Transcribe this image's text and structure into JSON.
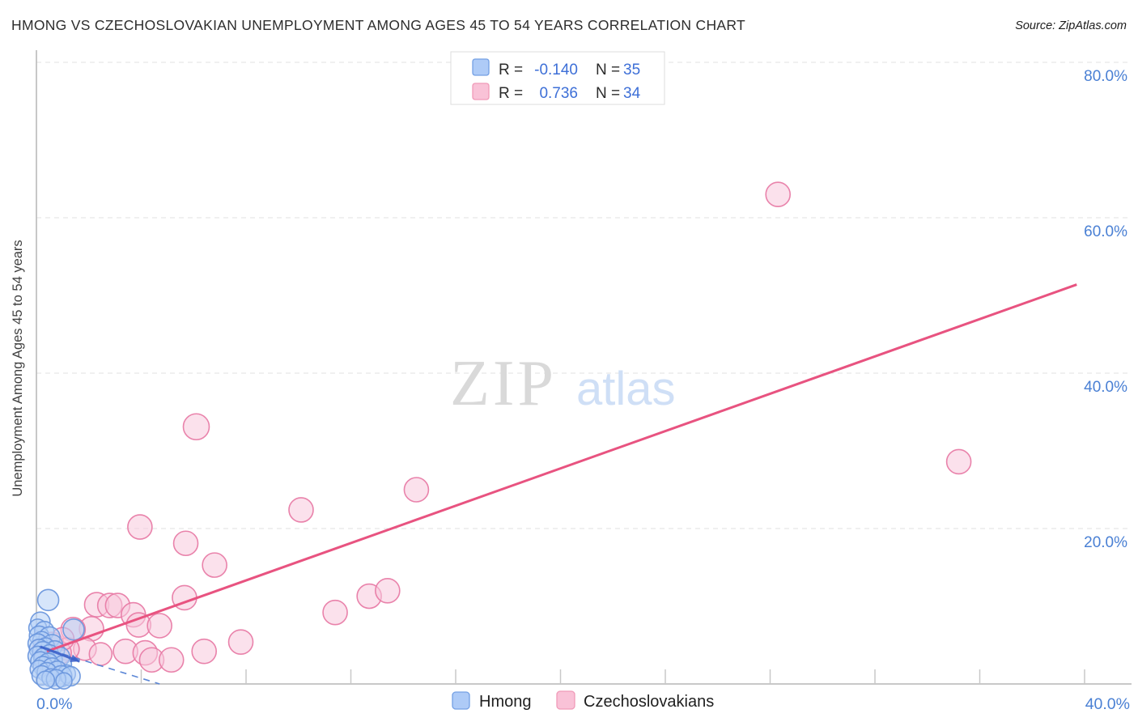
{
  "header": {
    "title": "HMONG VS CZECHOSLOVAKIAN UNEMPLOYMENT AMONG AGES 45 TO 54 YEARS CORRELATION CHART",
    "source": "Source: ZipAtlas.com"
  },
  "watermark": {
    "part1": "ZIP",
    "part2": "atlas"
  },
  "palette": {
    "blue_fill": "#b5d0f6",
    "blue_stroke": "#6b97dd",
    "pink_fill": "#f8c9dc",
    "pink_stroke": "#e87ca6",
    "blue_swatch_fill": "#aecbf7",
    "blue_swatch_stroke": "#74a0e4",
    "pink_swatch_fill": "#f9c2d7",
    "pink_swatch_stroke": "#f09ab8",
    "pink_line": "#e85380",
    "blue_line_solid": "#3a5fc9",
    "blue_line_dash": "#5b86d6",
    "axis_text": "#4a80d4",
    "value_text": "#3d6fd7",
    "label_text": "#2b2b2b",
    "grid": "#e2e2e2",
    "axis_line": "#b5b5b5",
    "tick": "#c8c8c8",
    "wm_zip": "#d9d9d9",
    "wm_atlas": "#cfdff6"
  },
  "correlation_legend": {
    "rows": [
      {
        "series": "Hmong",
        "r_label": "R =",
        "r_value": "-0.140",
        "n_label": "N =",
        "n_value": "35",
        "swatch": "blue"
      },
      {
        "series": "Czechoslovakians",
        "r_label": "R =",
        "r_value": "0.736",
        "n_label": "N =",
        "n_value": "34",
        "swatch": "pink"
      }
    ]
  },
  "bottom_legend": {
    "items": [
      {
        "label": "Hmong",
        "swatch": "blue"
      },
      {
        "label": "Czechoslovakians",
        "swatch": "pink"
      }
    ]
  },
  "axes": {
    "y_right_labels": [
      {
        "text": "80.0%",
        "value": 80
      },
      {
        "text": "60.0%",
        "value": 60
      },
      {
        "text": "40.0%",
        "value": 40
      },
      {
        "text": "20.0%",
        "value": 20
      }
    ],
    "x_left_label": {
      "text": "0.0%",
      "value": 0
    },
    "x_right_label": {
      "text": "40.0%",
      "value": 40
    },
    "x_tick_step_percent": 4,
    "x_tick_count": 10
  },
  "chart_data": {
    "type": "scatter",
    "title": "Hmong vs Czechoslovakian Unemployment Among Ages 45 to 54 years",
    "xlabel": "",
    "ylabel": "Unemployment Among Ages 45 to 54 years",
    "xlim": [
      0,
      40
    ],
    "ylim": [
      0,
      80
    ],
    "grid": "horizontal-dashed",
    "legend_position": "bottom-center",
    "series": [
      {
        "name": "Hmong",
        "R": -0.14,
        "N": 35,
        "points": [
          [
            0.45,
            10.8,
            13
          ],
          [
            0.15,
            8.0,
            12
          ],
          [
            0.05,
            7.2,
            11
          ],
          [
            0.3,
            6.8,
            12
          ],
          [
            1.42,
            7.0,
            13
          ],
          [
            0.1,
            6.2,
            12
          ],
          [
            0.5,
            6.0,
            13
          ],
          [
            0.2,
            5.6,
            11
          ],
          [
            0.05,
            5.2,
            12
          ],
          [
            0.6,
            5.0,
            13
          ],
          [
            0.35,
            4.8,
            11
          ],
          [
            0.1,
            4.5,
            12
          ],
          [
            0.7,
            4.3,
            12
          ],
          [
            0.25,
            4.1,
            13
          ],
          [
            0.5,
            3.9,
            11
          ],
          [
            0.05,
            3.6,
            12
          ],
          [
            0.9,
            3.5,
            12
          ],
          [
            0.3,
            3.3,
            13
          ],
          [
            0.65,
            3.1,
            11
          ],
          [
            0.15,
            2.9,
            12
          ],
          [
            0.45,
            2.7,
            12
          ],
          [
            1.0,
            2.5,
            11
          ],
          [
            0.25,
            2.3,
            12
          ],
          [
            0.6,
            2.1,
            12
          ],
          [
            0.1,
            1.9,
            11
          ],
          [
            0.8,
            1.7,
            12
          ],
          [
            0.4,
            1.5,
            12
          ],
          [
            1.15,
            1.3,
            11
          ],
          [
            0.2,
            1.1,
            12
          ],
          [
            0.95,
            1.0,
            13
          ],
          [
            0.55,
            0.8,
            11
          ],
          [
            1.3,
            1.0,
            12
          ],
          [
            0.75,
            0.6,
            12
          ],
          [
            0.35,
            0.5,
            11
          ],
          [
            1.05,
            0.4,
            10
          ]
        ]
      },
      {
        "name": "Czechoslovakians",
        "R": 0.736,
        "N": 34,
        "points": [
          [
            28.3,
            63.0,
            15
          ],
          [
            35.2,
            28.6,
            15
          ],
          [
            14.5,
            25.0,
            15
          ],
          [
            10.1,
            22.4,
            15
          ],
          [
            6.1,
            33.1,
            16
          ],
          [
            3.95,
            20.2,
            15
          ],
          [
            5.7,
            18.1,
            15
          ],
          [
            6.8,
            15.3,
            15
          ],
          [
            5.65,
            11.1,
            15
          ],
          [
            11.4,
            9.2,
            15
          ],
          [
            12.7,
            11.3,
            15
          ],
          [
            13.4,
            12.0,
            15
          ],
          [
            2.3,
            10.2,
            15
          ],
          [
            2.8,
            10.1,
            15
          ],
          [
            3.1,
            10.1,
            15
          ],
          [
            3.7,
            8.9,
            15
          ],
          [
            3.9,
            7.6,
            15
          ],
          [
            4.7,
            7.5,
            15
          ],
          [
            2.1,
            7.1,
            15
          ],
          [
            1.4,
            7.0,
            15
          ],
          [
            1.85,
            4.5,
            14
          ],
          [
            1.2,
            4.5,
            14
          ],
          [
            2.45,
            3.85,
            14
          ],
          [
            3.4,
            4.2,
            15
          ],
          [
            4.15,
            4.0,
            15
          ],
          [
            4.4,
            3.1,
            15
          ],
          [
            5.15,
            3.1,
            15
          ],
          [
            6.4,
            4.2,
            15
          ],
          [
            7.8,
            5.4,
            15
          ],
          [
            0.6,
            5.2,
            14
          ],
          [
            0.9,
            4.0,
            14
          ],
          [
            1.0,
            5.8,
            14
          ],
          [
            0.4,
            3.2,
            14
          ],
          [
            0.3,
            4.6,
            14
          ]
        ]
      }
    ],
    "trend_lines": [
      {
        "series": "Czechoslovakians",
        "style": "solid",
        "from": [
          0.4,
          4.2
        ],
        "to": [
          39.7,
          51.4
        ]
      },
      {
        "series": "Hmong",
        "style": "dashed",
        "from": [
          0.1,
          4.8
        ],
        "to": [
          4.7,
          0.0
        ]
      },
      {
        "series": "Hmong",
        "style": "solid-arrow",
        "from": [
          0.15,
          4.8
        ],
        "to": [
          1.65,
          2.9
        ]
      }
    ]
  }
}
